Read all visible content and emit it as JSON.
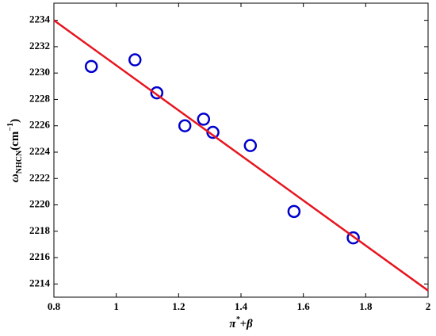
{
  "chart_data": {
    "type": "scatter",
    "xlabel_parts": [
      "π",
      "*",
      "+β"
    ],
    "ylabel_parts": [
      "ω",
      "NHCN",
      "(cm",
      "−1",
      ")"
    ],
    "series": [
      {
        "type": "scatter",
        "color": "#0000cc",
        "x": [
          0.92,
          1.06,
          1.13,
          1.22,
          1.28,
          1.31,
          1.43,
          1.57,
          1.76
        ],
        "values": [
          2230.5,
          2231,
          2228.5,
          2226,
          2226.5,
          2225.5,
          2224.5,
          2219.5,
          2217.5
        ]
      },
      {
        "type": "line",
        "color": "#e8141e",
        "x": [
          0.8,
          2
        ],
        "values": [
          2234,
          2213.5
        ]
      }
    ],
    "xlim": [
      0.8,
      2
    ],
    "xticks": [
      0.8,
      1,
      1.2,
      1.4,
      1.6,
      1.8,
      2
    ],
    "ylim": [
      2213,
      2235.3
    ],
    "yticks": [
      2214,
      2216,
      2218,
      2220,
      2222,
      2224,
      2226,
      2228,
      2230,
      2232,
      2234
    ],
    "grid": false
  }
}
